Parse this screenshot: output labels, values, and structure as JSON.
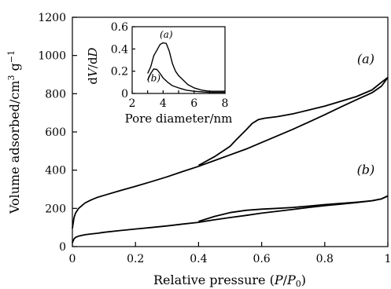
{
  "chart_data": [
    {
      "type": "line",
      "title": "",
      "xlabel": "Relative pressure (P/P0)",
      "xlabel_parts": [
        "Relative pressure (",
        "P",
        "/",
        "P",
        "0",
        ")"
      ],
      "ylabel": "Volume adsorbed/cm3 g−1",
      "ylabel_parts": [
        "Volume adsorbed/cm",
        "3",
        " g",
        "−1"
      ],
      "xlim": [
        0,
        1
      ],
      "ylim": [
        0,
        1200
      ],
      "xticks": [
        0,
        0.2,
        0.4,
        0.6,
        0.8,
        1
      ],
      "xtick_labels": [
        "0",
        "0.2",
        "0.4",
        "0.6",
        "0.8",
        "1"
      ],
      "yticks": [
        0,
        200,
        400,
        600,
        800,
        1000,
        1200
      ],
      "ytick_labels": [
        "0",
        "200",
        "400",
        "600",
        "800",
        "1000",
        "1200"
      ],
      "grid": false,
      "series": [
        {
          "name": "(a)",
          "adsorption": {
            "x": [
              0.0,
              0.005,
              0.01,
              0.02,
              0.04,
              0.06,
              0.08,
              0.1,
              0.15,
              0.2,
              0.25,
              0.3,
              0.35,
              0.4,
              0.45,
              0.5,
              0.55,
              0.6,
              0.65,
              0.7,
              0.75,
              0.8,
              0.85,
              0.9,
              0.95,
              0.98,
              1.0
            ],
            "y": [
              95,
              150,
              175,
              200,
              228,
              245,
              258,
              268,
              292,
              315,
              340,
              365,
              393,
              420,
              450,
              480,
              510,
              545,
              580,
              615,
              652,
              690,
              730,
              768,
              805,
              840,
              885
            ]
          },
          "desorption": {
            "x": [
              1.0,
              0.98,
              0.95,
              0.9,
              0.85,
              0.8,
              0.75,
              0.7,
              0.65,
              0.61,
              0.59,
              0.57,
              0.55,
              0.52,
              0.5,
              0.45,
              0.4
            ],
            "y": [
              885,
              860,
              820,
              785,
              760,
              735,
              715,
              695,
              680,
              672,
              665,
              645,
              610,
              560,
              525,
              470,
              425
            ]
          }
        },
        {
          "name": "(b)",
          "adsorption": {
            "x": [
              0.0,
              0.005,
              0.01,
              0.02,
              0.04,
              0.06,
              0.08,
              0.1,
              0.15,
              0.2,
              0.25,
              0.3,
              0.35,
              0.4,
              0.45,
              0.5,
              0.55,
              0.6,
              0.65,
              0.7,
              0.75,
              0.8,
              0.85,
              0.9,
              0.95,
              0.98,
              1.0
            ],
            "y": [
              20,
              40,
              48,
              55,
              62,
              66,
              70,
              75,
              84,
              92,
              100,
              108,
              118,
              127,
              140,
              152,
              163,
              175,
              185,
              195,
              205,
              214,
              222,
              230,
              240,
              250,
              265
            ]
          },
          "desorption": {
            "x": [
              1.0,
              0.98,
              0.95,
              0.9,
              0.85,
              0.8,
              0.75,
              0.7,
              0.65,
              0.6,
              0.55,
              0.5,
              0.45,
              0.4
            ],
            "y": [
              265,
              250,
              240,
              232,
              226,
              220,
              212,
              205,
              200,
              196,
              190,
              178,
              158,
              132
            ]
          }
        }
      ],
      "annotations": [
        {
          "text": "(a)",
          "x": 0.93,
          "y": 960
        },
        {
          "text": "(b)",
          "x": 0.93,
          "y": 380
        }
      ]
    },
    {
      "type": "line",
      "title": "",
      "xlabel": "Pore diameter/nm",
      "ylabel": "dV/dD",
      "ylabel_parts": [
        "d",
        "V",
        "/d",
        "D"
      ],
      "xlim": [
        2,
        8
      ],
      "ylim": [
        0,
        0.6
      ],
      "xticks": [
        2,
        3,
        4,
        5,
        6,
        7,
        8
      ],
      "xtick_labels": [
        "2",
        "4",
        "6",
        "8"
      ],
      "xtick_labeled": [
        2,
        4,
        6,
        8
      ],
      "yticks": [
        0,
        0.2,
        0.4,
        0.6
      ],
      "ytick_labels": [
        "0",
        "0.2",
        "0.4",
        "0.6"
      ],
      "grid": false,
      "series": [
        {
          "name": "(a)",
          "x": [
            3.0,
            3.2,
            3.4,
            3.6,
            3.8,
            4.0,
            4.2,
            4.4,
            4.6,
            4.8,
            5.0,
            5.3,
            5.6,
            6.0,
            6.5,
            7.0,
            7.5,
            8.0
          ],
          "y": [
            0.18,
            0.24,
            0.34,
            0.39,
            0.44,
            0.455,
            0.45,
            0.38,
            0.27,
            0.2,
            0.16,
            0.12,
            0.08,
            0.05,
            0.03,
            0.02,
            0.02,
            0.02
          ]
        },
        {
          "name": "(b)",
          "x": [
            3.0,
            3.2,
            3.4,
            3.6,
            3.8,
            4.0,
            4.3,
            4.6,
            5.0,
            5.5,
            6.0,
            6.5,
            7.0,
            7.5,
            8.0
          ],
          "y": [
            0.12,
            0.18,
            0.22,
            0.215,
            0.18,
            0.14,
            0.1,
            0.07,
            0.05,
            0.03,
            0.02,
            0.015,
            0.01,
            0.01,
            0.01
          ]
        }
      ],
      "annotations": [
        {
          "text": "(a)",
          "x": 4.2,
          "y": 0.5
        },
        {
          "text": "(b)",
          "x": 3.4,
          "y": 0.11
        }
      ]
    }
  ]
}
